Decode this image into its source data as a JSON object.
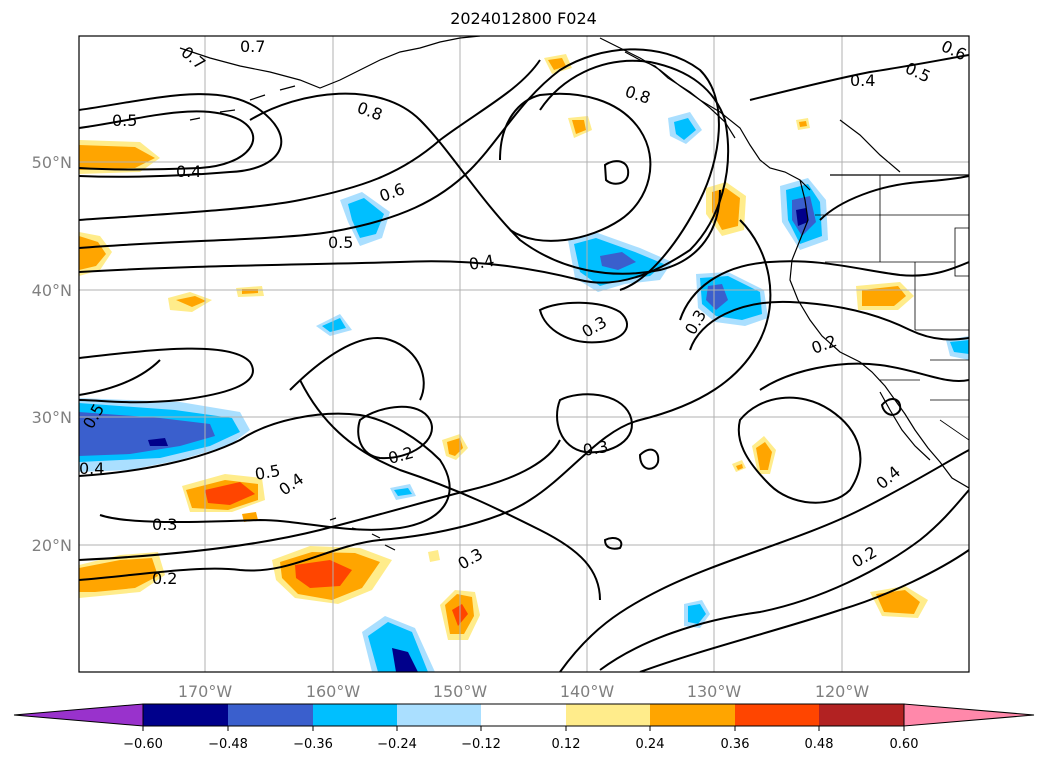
{
  "title": "2024012800 F024",
  "map": {
    "lat_ticks": [
      "50°N",
      "40°N",
      "30°N",
      "20°N"
    ],
    "lon_ticks": [
      "170°W",
      "160°W",
      "150°W",
      "140°W",
      "130°W",
      "120°W"
    ],
    "contour_labels": [
      "0.7",
      "0.7",
      "0.8",
      "0.8",
      "0.5",
      "0.5",
      "0.4",
      "0.4",
      "0.6",
      "0.5",
      "0.4",
      "0.3",
      "0.3",
      "0.2",
      "0.5",
      "0.4",
      "0.5",
      "0.4",
      "0.2",
      "0.3",
      "0.3",
      "0.3",
      "0.2",
      "0.4",
      "0.2",
      "0.6"
    ]
  },
  "colorbar": {
    "tick_labels": [
      "−0.60",
      "−0.48",
      "−0.36",
      "−0.24",
      "−0.12",
      "0.12",
      "0.24",
      "0.36",
      "0.48",
      "0.60"
    ],
    "colors": [
      "#9932cc",
      "#00008b",
      "#3a5fcd",
      "#00bfff",
      "#aadfff",
      "#ffffff",
      "#ffec8b",
      "#ffa500",
      "#ff4500",
      "#b22222",
      "#ff88aa"
    ]
  }
}
